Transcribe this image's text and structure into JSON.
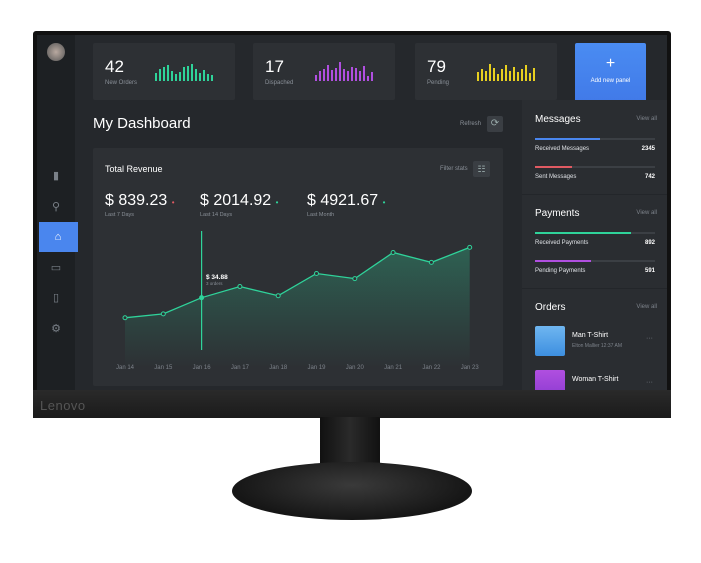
{
  "monitor": {
    "brand": "Lenovo"
  },
  "stats": [
    {
      "value": "42",
      "label": "New Orders",
      "color": "#2fd39a",
      "bars": [
        8,
        12,
        14,
        16,
        10,
        7,
        9,
        14,
        15,
        17,
        12,
        8,
        11,
        7,
        6
      ]
    },
    {
      "value": "17",
      "label": "Dispached",
      "color": "#b04fe0",
      "bars": [
        6,
        10,
        12,
        16,
        11,
        13,
        19,
        12,
        10,
        14,
        13,
        10,
        15,
        5,
        9
      ]
    },
    {
      "value": "79",
      "label": "Pending",
      "color": "#e8d020",
      "bars": [
        9,
        12,
        10,
        17,
        13,
        7,
        12,
        16,
        10,
        14,
        9,
        12,
        16,
        8,
        13
      ]
    }
  ],
  "add_panel": {
    "icon": "plus-icon",
    "label": "Add new panel"
  },
  "header": {
    "title": "My Dashboard",
    "refresh": "Refresh"
  },
  "revenue": {
    "title": "Total Revenue",
    "filter": "Filter stats",
    "kpis": [
      {
        "value": "$ 839.23",
        "label": "Last 7 Days",
        "trend": "down",
        "color": "#e05a62"
      },
      {
        "value": "$ 2014.92",
        "label": "Last 14 Days",
        "trend": "up",
        "color": "#2fd39a"
      },
      {
        "value": "$ 4921.67",
        "label": "Last Month",
        "trend": "up",
        "color": "#2fd39a"
      }
    ],
    "tooltip": {
      "value": "$ 34.88",
      "sub": "3 orders"
    }
  },
  "chart_data": {
    "type": "area",
    "categories": [
      "Jan 14",
      "Jan 15",
      "Jan 16",
      "Jan 17",
      "Jan 18",
      "Jan 19",
      "Jan 20",
      "Jan 21",
      "Jan 22",
      "Jan 23"
    ],
    "values": [
      21.5,
      24.1,
      34.88,
      42.3,
      36.2,
      51,
      47.6,
      65,
      58.4,
      68.4
    ],
    "highlighted": "Jan 16",
    "color": "#2fd39a",
    "grid": false
  },
  "messages": {
    "title": "Messages",
    "view_all": "View all",
    "items": [
      {
        "label": "Received Messages",
        "value": "2345",
        "fraction": 0.54,
        "color": "#4a86ee"
      },
      {
        "label": "Sent Messages",
        "value": "742",
        "fraction": 0.31,
        "color": "#e05a62"
      }
    ]
  },
  "payments": {
    "title": "Payments",
    "view_all": "View all",
    "items": [
      {
        "label": "Received Payments",
        "value": "892",
        "fraction": 0.8,
        "color": "#2fd39a"
      },
      {
        "label": "Pending Payments",
        "value": "591",
        "fraction": 0.47,
        "color": "#b04fe0"
      }
    ]
  },
  "orders": {
    "title": "Orders",
    "view_all": "View all",
    "items": [
      {
        "name": "Man T-Shirt",
        "meta": "Elton Mallier   12:37 AM"
      },
      {
        "name": "Woman T-Shirt",
        "meta": ""
      }
    ]
  }
}
